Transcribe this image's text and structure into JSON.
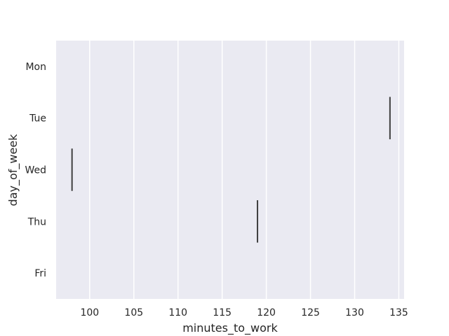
{
  "chart_data": {
    "type": "box",
    "orientation": "horizontal",
    "xlabel": "minutes_to_work",
    "ylabel": "day_of_week",
    "categories": [
      "Mon",
      "Tue",
      "Wed",
      "Thu",
      "Fri"
    ],
    "values": [
      null,
      134,
      98,
      119,
      null
    ],
    "xlim": [
      96.2,
      135.6
    ],
    "xticks": [
      100,
      105,
      110,
      115,
      120,
      125,
      130,
      135
    ],
    "grid": true,
    "colors": {
      "plot_background": "#eaeaf2",
      "grid": "#ffffff",
      "mark": "#3f3f3f",
      "text": "#262626"
    }
  }
}
